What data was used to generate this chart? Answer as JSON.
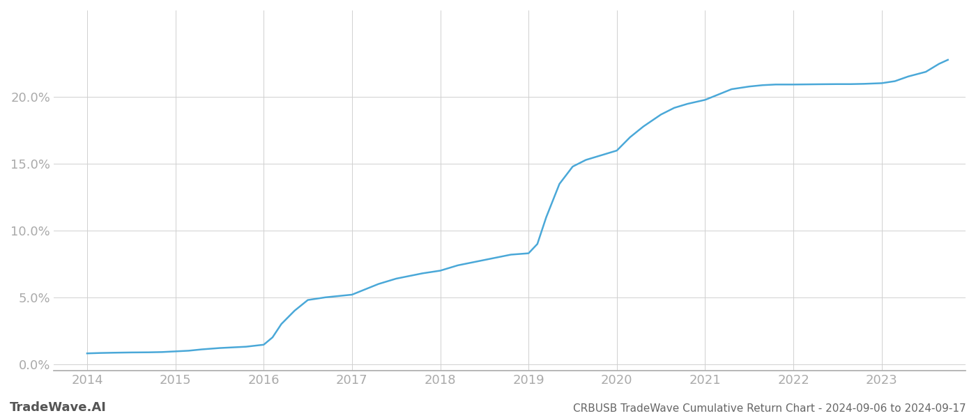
{
  "title": "CRBUSB TradeWave Cumulative Return Chart - 2024-09-06 to 2024-09-17",
  "watermark": "TradeWave.AI",
  "line_color": "#4aa8d8",
  "background_color": "#ffffff",
  "grid_color": "#d0d0d0",
  "x_years": [
    2014,
    2015,
    2016,
    2017,
    2018,
    2019,
    2020,
    2021,
    2022,
    2023
  ],
  "data_x": [
    2014.0,
    2014.15,
    2014.3,
    2014.5,
    2014.7,
    2014.85,
    2015.0,
    2015.15,
    2015.3,
    2015.5,
    2015.65,
    2015.8,
    2016.0,
    2016.1,
    2016.2,
    2016.35,
    2016.5,
    2016.7,
    2016.85,
    2017.0,
    2017.15,
    2017.3,
    2017.5,
    2017.65,
    2017.8,
    2018.0,
    2018.1,
    2018.2,
    2018.35,
    2018.5,
    2018.65,
    2018.8,
    2019.0,
    2019.1,
    2019.2,
    2019.35,
    2019.5,
    2019.65,
    2019.8,
    2020.0,
    2020.15,
    2020.3,
    2020.5,
    2020.65,
    2020.8,
    2021.0,
    2021.15,
    2021.3,
    2021.5,
    2021.65,
    2021.8,
    2022.0,
    2022.15,
    2022.3,
    2022.5,
    2022.65,
    2022.8,
    2023.0,
    2023.15,
    2023.3,
    2023.5,
    2023.65,
    2023.75
  ],
  "data_y": [
    0.008,
    0.0083,
    0.0085,
    0.0087,
    0.0088,
    0.009,
    0.0095,
    0.01,
    0.011,
    0.012,
    0.0125,
    0.013,
    0.0145,
    0.02,
    0.03,
    0.04,
    0.048,
    0.05,
    0.051,
    0.052,
    0.056,
    0.06,
    0.064,
    0.066,
    0.068,
    0.07,
    0.072,
    0.074,
    0.076,
    0.078,
    0.08,
    0.082,
    0.083,
    0.09,
    0.11,
    0.135,
    0.148,
    0.153,
    0.156,
    0.16,
    0.17,
    0.178,
    0.187,
    0.192,
    0.195,
    0.198,
    0.202,
    0.206,
    0.208,
    0.209,
    0.2095,
    0.2095,
    0.2096,
    0.2097,
    0.2098,
    0.2098,
    0.21,
    0.2105,
    0.212,
    0.2155,
    0.219,
    0.225,
    0.228
  ],
  "ylim": [
    -0.005,
    0.265
  ],
  "yticks": [
    0.0,
    0.05,
    0.1,
    0.15,
    0.2
  ],
  "xlim": [
    2013.62,
    2023.95
  ],
  "axis_color": "#aaaaaa",
  "tick_label_color": "#aaaaaa",
  "title_color": "#666666",
  "watermark_color": "#555555",
  "title_fontsize": 11,
  "tick_fontsize": 13,
  "watermark_fontsize": 13,
  "line_width": 1.8
}
